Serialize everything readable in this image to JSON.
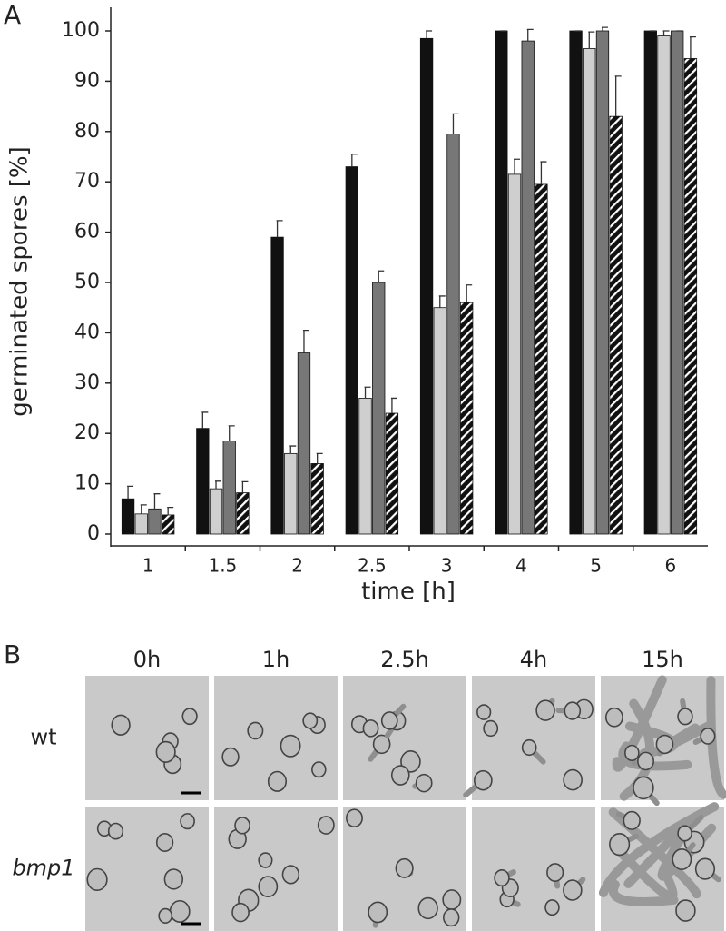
{
  "chart_data": {
    "type": "bar",
    "panel_label": "A",
    "y_label": "germinated spores [%]",
    "x_label": "time [h]",
    "categories": [
      "1",
      "1.5",
      "2",
      "2.5",
      "3",
      "4",
      "5",
      "6"
    ],
    "series": [
      {
        "color": "#111111",
        "values": [
          7,
          21,
          59,
          73,
          98.5,
          100,
          100,
          100
        ],
        "errors": [
          2.5,
          3.2,
          3.3,
          2.5,
          1.5,
          0,
          0,
          0
        ]
      },
      {
        "color": "#cfcfcf",
        "values": [
          4,
          9,
          16,
          27,
          45,
          71.5,
          96.5,
          99
        ],
        "errors": [
          1.8,
          1.5,
          1.5,
          2.2,
          2.3,
          3,
          3.3,
          1
        ]
      },
      {
        "color": "#777777",
        "values": [
          5,
          18.5,
          36,
          50,
          79.5,
          98,
          100,
          100
        ],
        "errors": [
          3,
          3,
          4.5,
          2.3,
          4,
          2.3,
          0.7,
          0
        ]
      },
      {
        "color": "#111111",
        "pattern": "hatch",
        "values": [
          3.8,
          8.2,
          14,
          24,
          46,
          69.5,
          83,
          94.5
        ],
        "errors": [
          1.5,
          2.2,
          2,
          3,
          3.5,
          4.5,
          8,
          4.3
        ]
      }
    ],
    "ylim": [
      0,
      100
    ],
    "yticks": [
      0,
      10,
      20,
      30,
      40,
      50,
      60,
      70,
      80,
      90,
      100
    ]
  },
  "micrographs": {
    "panel_label": "B",
    "columns": [
      "0h",
      "1h",
      "2.5h",
      "4h",
      "15h"
    ],
    "rows": [
      "wt",
      "bmp1"
    ]
  }
}
